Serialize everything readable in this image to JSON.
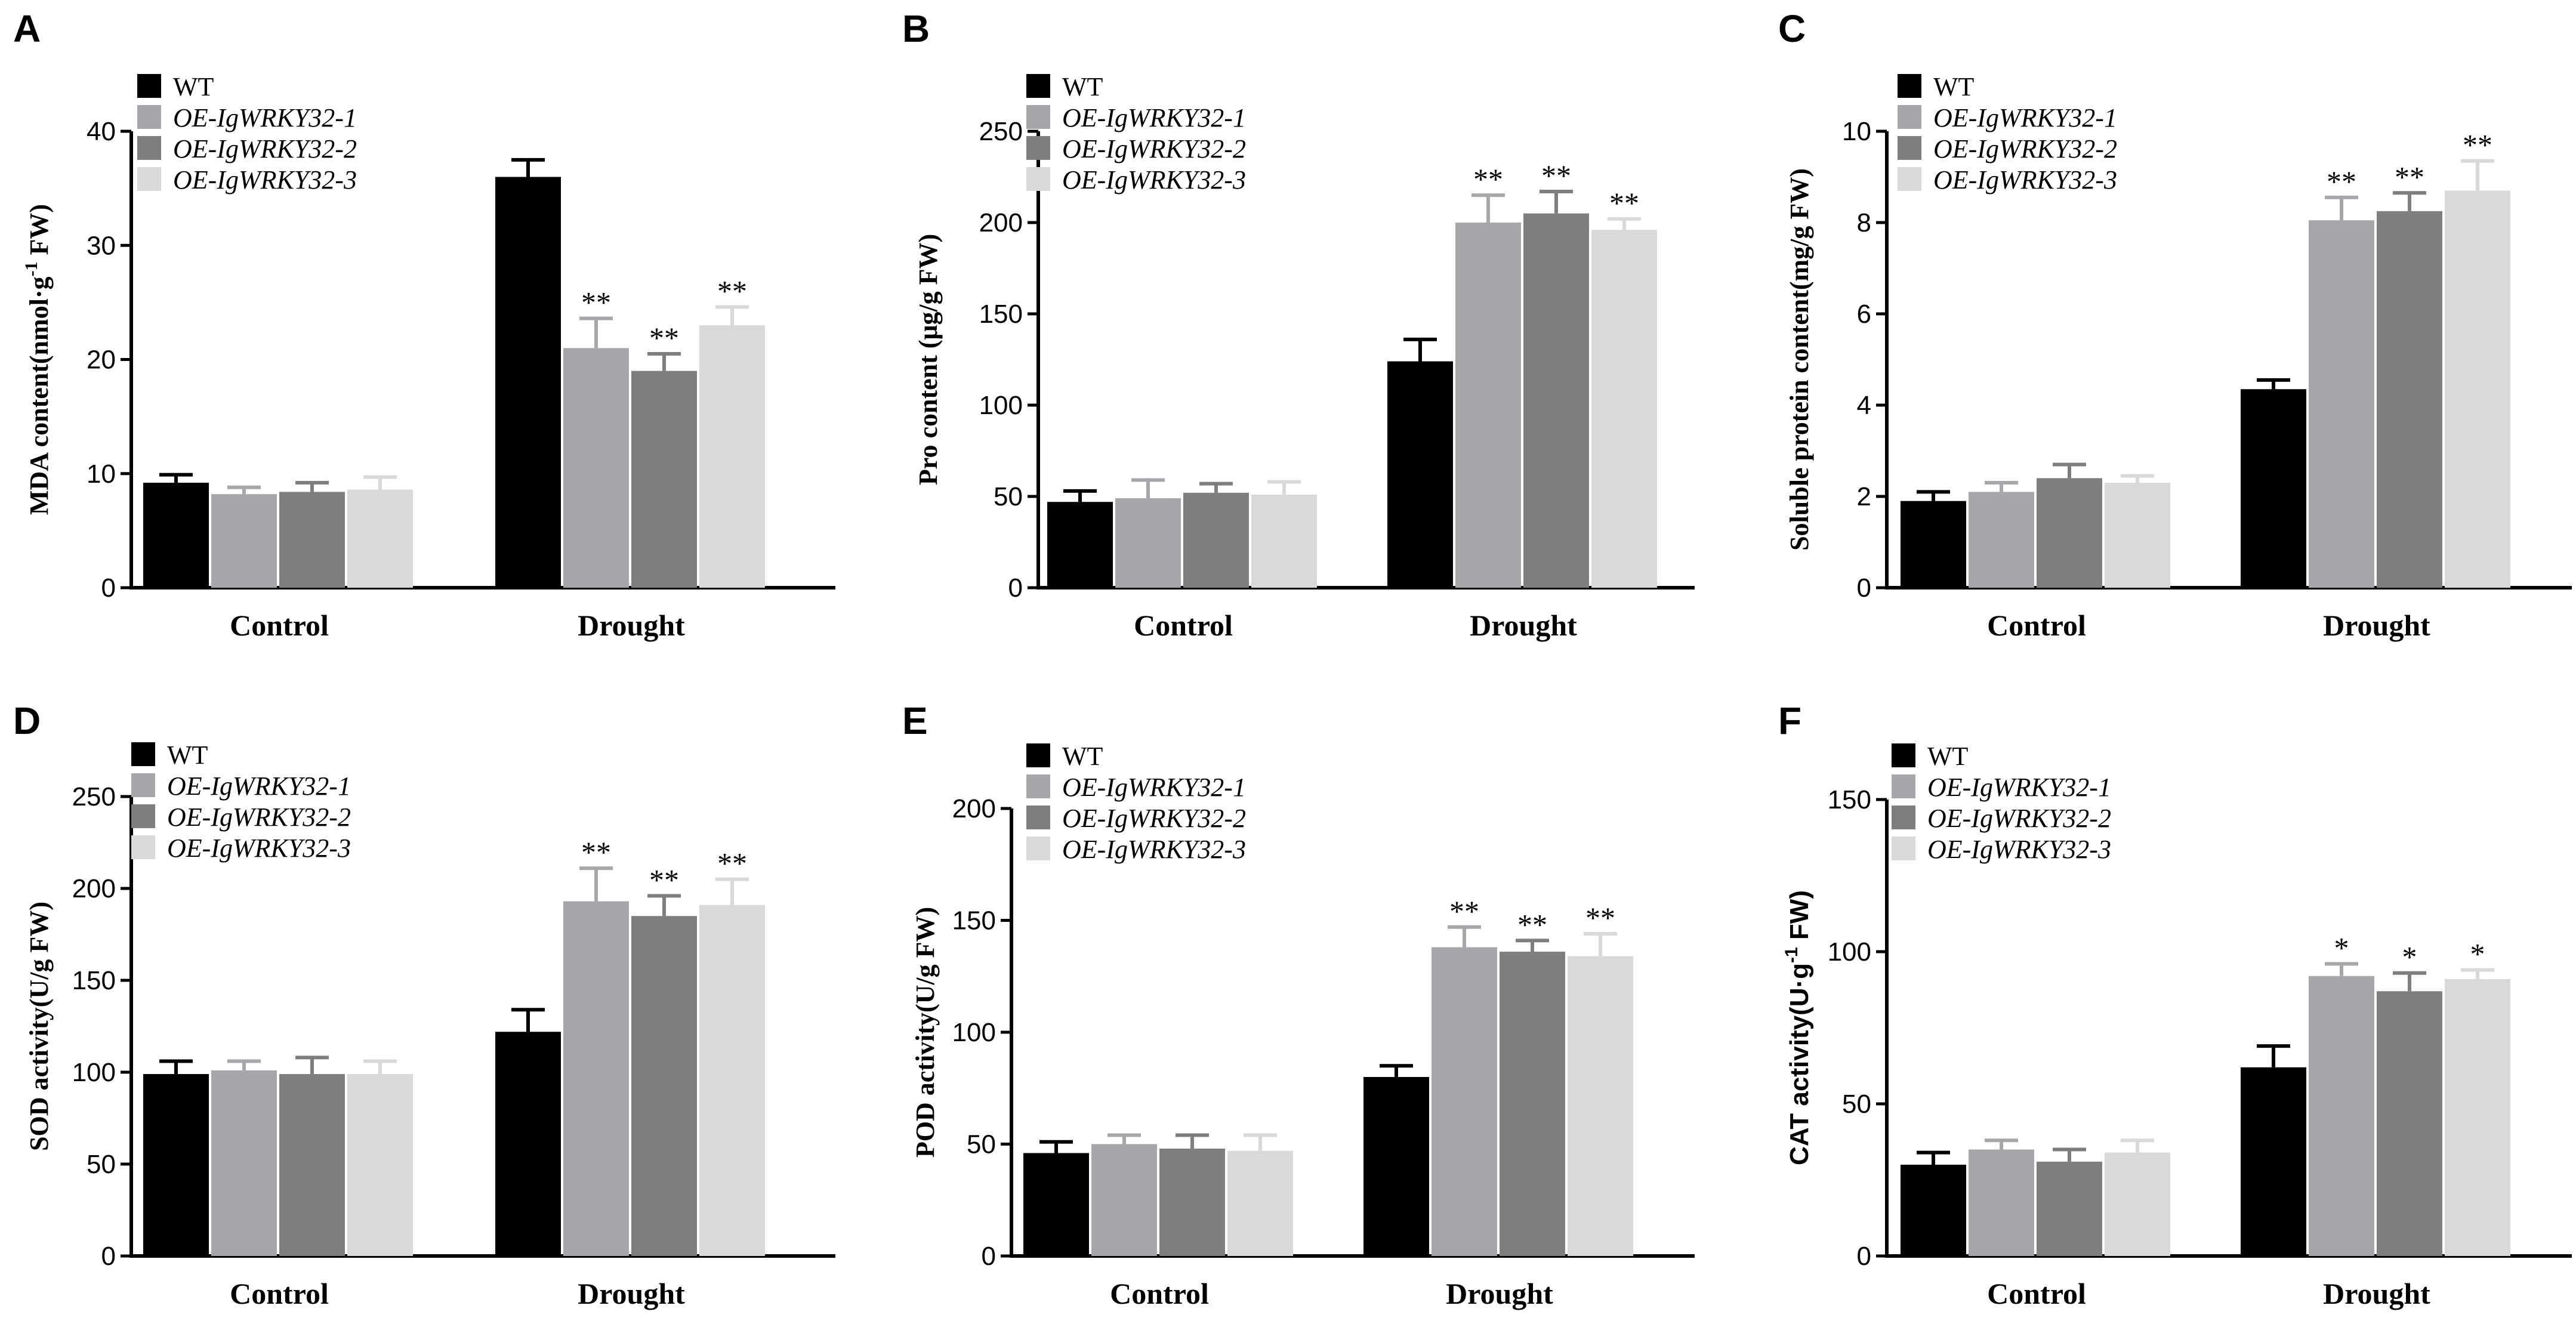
{
  "chart_data": [
    {
      "panel": "A",
      "type": "bar",
      "ylabel_main": "MDA content(nmol·g",
      "ylabel_sup": "-1",
      "ylabel_tail": " FW)",
      "ylabel_font": "serif",
      "ylim": [
        0,
        40
      ],
      "yticks": [
        0,
        10,
        20,
        30,
        40
      ],
      "categories": [
        "Control",
        "Drought"
      ],
      "series": [
        {
          "name": "WT",
          "values": [
            9.2,
            36.0
          ],
          "errors": [
            0.7,
            1.5
          ]
        },
        {
          "name": "OE-IgWRKY32-1",
          "values": [
            8.2,
            21.0
          ],
          "errors": [
            0.6,
            2.6
          ]
        },
        {
          "name": "OE-IgWRKY32-2",
          "values": [
            8.4,
            19.0
          ],
          "errors": [
            0.8,
            1.5
          ]
        },
        {
          "name": "OE-IgWRKY32-3",
          "values": [
            8.6,
            23.0
          ],
          "errors": [
            1.1,
            1.6
          ]
        }
      ],
      "annotations": [
        [
          "",
          ""
        ],
        [
          "",
          "**"
        ],
        [
          "",
          "**"
        ],
        [
          "",
          "**"
        ]
      ]
    },
    {
      "panel": "B",
      "type": "bar",
      "ylabel_main": "Pro content (μg/g FW)",
      "ylabel_sup": "",
      "ylabel_tail": "",
      "ylabel_font": "serif",
      "ylim": [
        0,
        250
      ],
      "yticks": [
        0,
        50,
        100,
        150,
        200,
        250
      ],
      "categories": [
        "Control",
        "Drought"
      ],
      "series": [
        {
          "name": "WT",
          "values": [
            47,
            124
          ],
          "errors": [
            6,
            12
          ]
        },
        {
          "name": "OE-IgWRKY32-1",
          "values": [
            49,
            200
          ],
          "errors": [
            10,
            15
          ]
        },
        {
          "name": "OE-IgWRKY32-2",
          "values": [
            52,
            205
          ],
          "errors": [
            5,
            12
          ]
        },
        {
          "name": "OE-IgWRKY32-3",
          "values": [
            51,
            196
          ],
          "errors": [
            7,
            6
          ]
        }
      ],
      "annotations": [
        [
          "",
          ""
        ],
        [
          "",
          "**"
        ],
        [
          "",
          "**"
        ],
        [
          "",
          "**"
        ]
      ]
    },
    {
      "panel": "C",
      "type": "bar",
      "ylabel_main": "Soluble protein content(mg/g FW)",
      "ylabel_sup": "",
      "ylabel_tail": "",
      "ylabel_font": "serif",
      "ylim": [
        0,
        10
      ],
      "yticks": [
        0,
        2,
        4,
        6,
        8,
        10
      ],
      "categories": [
        "Control",
        "Drought"
      ],
      "series": [
        {
          "name": "WT",
          "values": [
            1.9,
            4.35
          ],
          "errors": [
            0.2,
            0.2
          ]
        },
        {
          "name": "OE-IgWRKY32-1",
          "values": [
            2.1,
            8.05
          ],
          "errors": [
            0.2,
            0.5
          ]
        },
        {
          "name": "OE-IgWRKY32-2",
          "values": [
            2.4,
            8.25
          ],
          "errors": [
            0.3,
            0.4
          ]
        },
        {
          "name": "OE-IgWRKY32-3",
          "values": [
            2.3,
            8.7
          ],
          "errors": [
            0.15,
            0.65
          ]
        }
      ],
      "annotations": [
        [
          "",
          ""
        ],
        [
          "",
          "**"
        ],
        [
          "",
          "**"
        ],
        [
          "",
          "**"
        ]
      ]
    },
    {
      "panel": "D",
      "type": "bar",
      "ylabel_main": "SOD activity(U/g FW)",
      "ylabel_sup": "",
      "ylabel_tail": "",
      "ylabel_font": "serif",
      "ylim": [
        0,
        250
      ],
      "yticks": [
        0,
        50,
        100,
        150,
        200,
        250
      ],
      "categories": [
        "Control",
        "Drought"
      ],
      "series": [
        {
          "name": "WT",
          "values": [
            99,
            122
          ],
          "errors": [
            7,
            12
          ]
        },
        {
          "name": "OE-IgWRKY32-1",
          "values": [
            101,
            193
          ],
          "errors": [
            5,
            18
          ]
        },
        {
          "name": "OE-IgWRKY32-2",
          "values": [
            99,
            185
          ],
          "errors": [
            9,
            11
          ]
        },
        {
          "name": "OE-IgWRKY32-3",
          "values": [
            99,
            191
          ],
          "errors": [
            7,
            14
          ]
        }
      ],
      "annotations": [
        [
          "",
          ""
        ],
        [
          "",
          "**"
        ],
        [
          "",
          "**"
        ],
        [
          "",
          "**"
        ]
      ]
    },
    {
      "panel": "E",
      "type": "bar",
      "ylabel_main": "POD activity(U/g FW)",
      "ylabel_sup": "",
      "ylabel_tail": "",
      "ylabel_font": "serif",
      "ylim": [
        0,
        200
      ],
      "yticks": [
        0,
        50,
        100,
        150,
        200
      ],
      "categories": [
        "Control",
        "Drought"
      ],
      "series": [
        {
          "name": "WT",
          "values": [
            46,
            80
          ],
          "errors": [
            5,
            5
          ]
        },
        {
          "name": "OE-IgWRKY32-1",
          "values": [
            50,
            138
          ],
          "errors": [
            4,
            9
          ]
        },
        {
          "name": "OE-IgWRKY32-2",
          "values": [
            48,
            136
          ],
          "errors": [
            6,
            5
          ]
        },
        {
          "name": "OE-IgWRKY32-3",
          "values": [
            47,
            134
          ],
          "errors": [
            7,
            10
          ]
        }
      ],
      "annotations": [
        [
          "",
          ""
        ],
        [
          "",
          "**"
        ],
        [
          "",
          "**"
        ],
        [
          "",
          "**"
        ]
      ]
    },
    {
      "panel": "F",
      "type": "bar",
      "ylabel_main": "CAT activity(U·g",
      "ylabel_sup": "-1",
      "ylabel_tail": " FW)",
      "ylabel_font": "sans",
      "ylim": [
        0,
        150
      ],
      "yticks": [
        0,
        50,
        100,
        150
      ],
      "categories": [
        "Control",
        "Drought"
      ],
      "series": [
        {
          "name": "WT",
          "values": [
            30,
            62
          ],
          "errors": [
            4,
            7
          ]
        },
        {
          "name": "OE-IgWRKY32-1",
          "values": [
            35,
            92
          ],
          "errors": [
            3,
            4
          ]
        },
        {
          "name": "OE-IgWRKY32-2",
          "values": [
            31,
            87
          ],
          "errors": [
            4,
            6
          ]
        },
        {
          "name": "OE-IgWRKY32-3",
          "values": [
            34,
            91
          ],
          "errors": [
            4,
            3
          ]
        }
      ],
      "annotations": [
        [
          "",
          ""
        ],
        [
          "",
          "*"
        ],
        [
          "",
          "*"
        ],
        [
          "",
          "*"
        ]
      ]
    }
  ],
  "style": {
    "series_colors": [
      "#000000",
      "#a7a7ab",
      "#7e7e80",
      "#d9d9d9"
    ]
  }
}
